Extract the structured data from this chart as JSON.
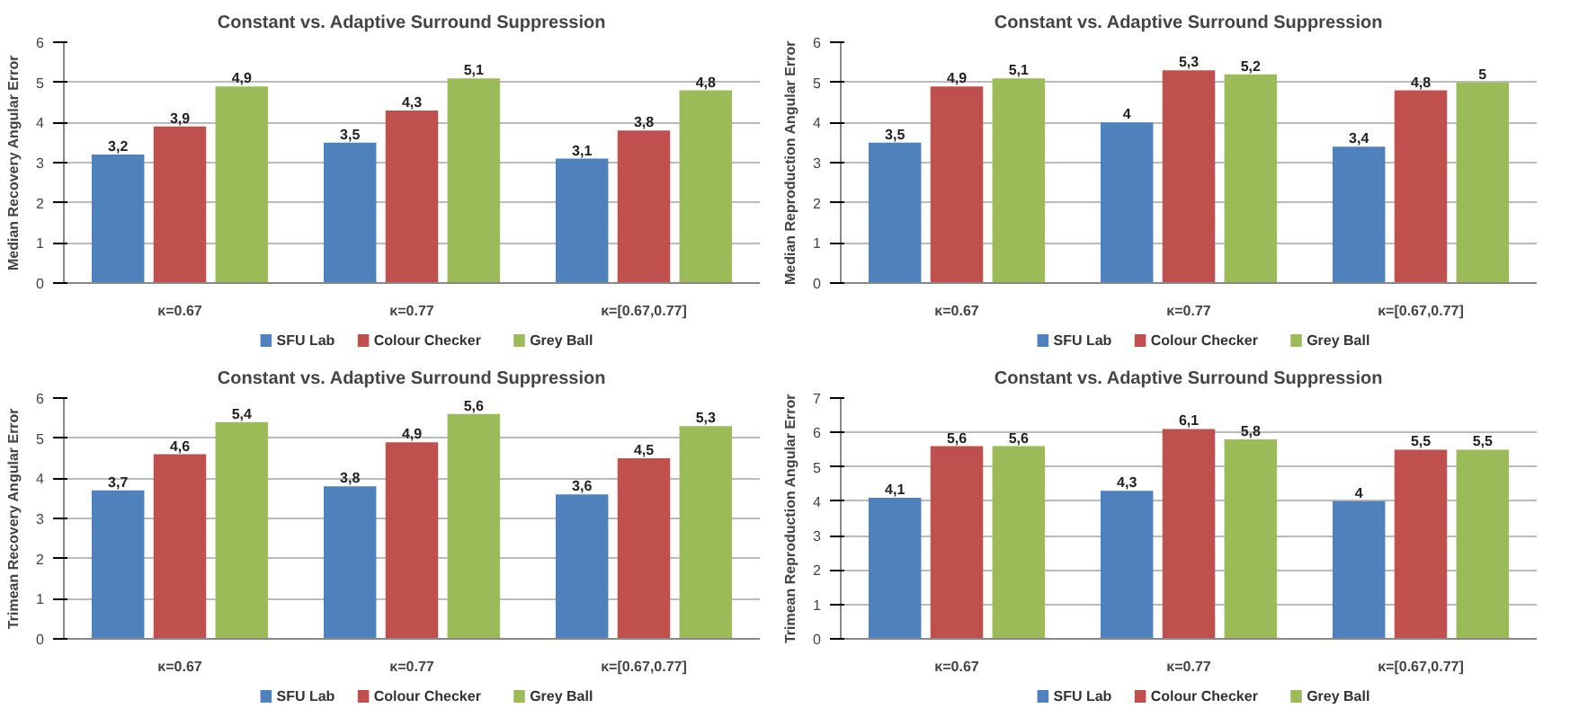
{
  "chart_data": [
    {
      "type": "bar",
      "title": "Constant vs. Adaptive Surround Suppression",
      "ylabel": "Median Recovery Angular Error",
      "categories": [
        "κ=0.67",
        "κ=0.77",
        "κ=[0.67,0.77]"
      ],
      "ylim": [
        0,
        6
      ],
      "yticks": [
        0,
        1,
        2,
        3,
        4,
        5,
        6
      ],
      "grid": "y",
      "legend": "bottom",
      "series": [
        {
          "name": "SFU Lab",
          "color": "#4f81bd",
          "values": [
            3.2,
            3.5,
            3.1
          ],
          "value_labels": [
            "3,2",
            "3,5",
            "3,1"
          ]
        },
        {
          "name": "Colour Checker",
          "color": "#c0504d",
          "values": [
            3.9,
            4.3,
            3.8
          ],
          "value_labels": [
            "3,9",
            "4,3",
            "3,8"
          ]
        },
        {
          "name": "Grey Ball",
          "color": "#9bbb59",
          "values": [
            4.9,
            5.1,
            4.8
          ],
          "value_labels": [
            "4,9",
            "5,1",
            "4,8"
          ]
        }
      ]
    },
    {
      "type": "bar",
      "title": "Constant vs. Adaptive Surround Suppression",
      "ylabel": "Median Reproduction Angular Error",
      "categories": [
        "κ=0.67",
        "κ=0.77",
        "κ=[0.67,0.77]"
      ],
      "ylim": [
        0,
        6
      ],
      "yticks": [
        0,
        1,
        2,
        3,
        4,
        5,
        6
      ],
      "grid": "y",
      "legend": "bottom",
      "series": [
        {
          "name": "SFU Lab",
          "color": "#4f81bd",
          "values": [
            3.5,
            4,
            3.4
          ],
          "value_labels": [
            "3,5",
            "4",
            "3,4"
          ]
        },
        {
          "name": "Colour Checker",
          "color": "#c0504d",
          "values": [
            4.9,
            5.3,
            4.8
          ],
          "value_labels": [
            "4,9",
            "5,3",
            "4,8"
          ]
        },
        {
          "name": "Grey Ball",
          "color": "#9bbb59",
          "values": [
            5.1,
            5.2,
            5
          ],
          "value_labels": [
            "5,1",
            "5,2",
            "5"
          ]
        }
      ]
    },
    {
      "type": "bar",
      "title": "Constant vs. Adaptive Surround Suppression",
      "ylabel": "Trimean Recovery Angular Error",
      "categories": [
        "κ=0.67",
        "κ=0.77",
        "κ=[0.67,0.77]"
      ],
      "ylim": [
        0,
        6
      ],
      "yticks": [
        0,
        1,
        2,
        3,
        4,
        5,
        6
      ],
      "grid": "y",
      "legend": "bottom",
      "series": [
        {
          "name": "SFU Lab",
          "color": "#4f81bd",
          "values": [
            3.7,
            3.8,
            3.6
          ],
          "value_labels": [
            "3,7",
            "3,8",
            "3,6"
          ]
        },
        {
          "name": "Colour Checker",
          "color": "#c0504d",
          "values": [
            4.6,
            4.9,
            4.5
          ],
          "value_labels": [
            "4,6",
            "4,9",
            "4,5"
          ]
        },
        {
          "name": "Grey Ball",
          "color": "#9bbb59",
          "values": [
            5.4,
            5.6,
            5.3
          ],
          "value_labels": [
            "5,4",
            "5,6",
            "5,3"
          ]
        }
      ]
    },
    {
      "type": "bar",
      "title": "Constant vs. Adaptive Surround Suppression",
      "ylabel": "Trimean Reproduction Angular Error",
      "categories": [
        "κ=0.67",
        "κ=0.77",
        "κ=[0.67,0.77]"
      ],
      "ylim": [
        0,
        7
      ],
      "yticks": [
        0,
        1,
        2,
        3,
        4,
        5,
        6,
        7
      ],
      "grid": "y",
      "legend": "bottom",
      "series": [
        {
          "name": "SFU Lab",
          "color": "#4f81bd",
          "values": [
            4.1,
            4.3,
            4
          ],
          "value_labels": [
            "4,1",
            "4,3",
            "4"
          ]
        },
        {
          "name": "Colour Checker",
          "color": "#c0504d",
          "values": [
            5.6,
            6.1,
            5.5
          ],
          "value_labels": [
            "5,6",
            "6,1",
            "5,5"
          ]
        },
        {
          "name": "Grey Ball",
          "color": "#9bbb59",
          "values": [
            5.6,
            5.8,
            5.5
          ],
          "value_labels": [
            "5,6",
            "5,8",
            "5,5"
          ]
        }
      ]
    }
  ]
}
